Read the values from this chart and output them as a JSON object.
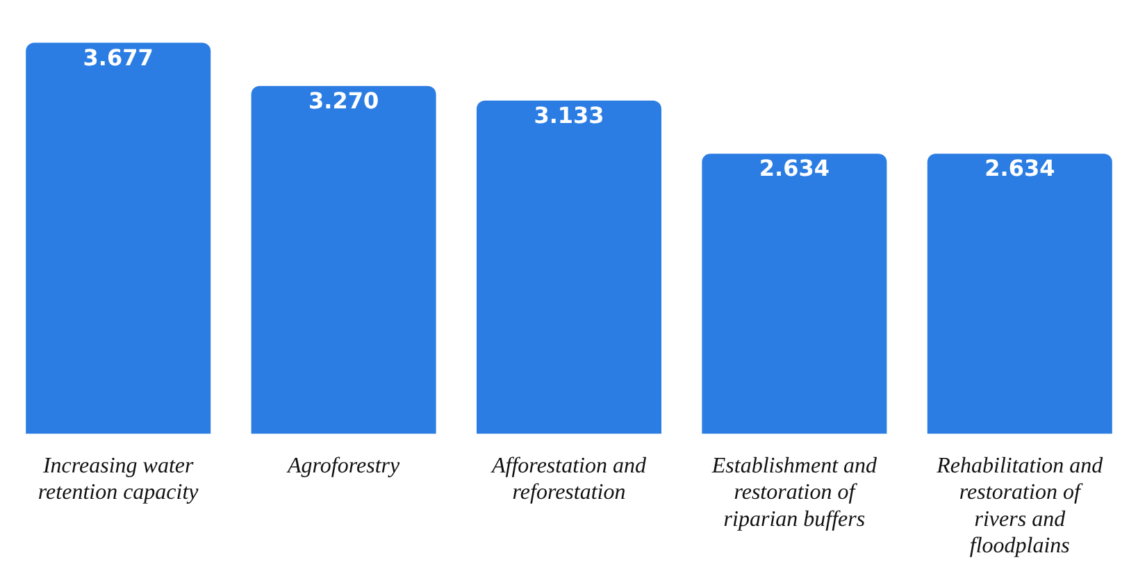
{
  "chart_data": {
    "type": "bar",
    "categories": [
      "Increasing water retention capacity",
      "Agroforestry",
      "Afforestation and reforestation",
      "Establishment and restoration of riparian buffers",
      "Rehabilitation and restoration of rivers and floodplains"
    ],
    "values": [
      3.677,
      3.27,
      3.133,
      2.634,
      2.634
    ],
    "value_labels": [
      "3.677",
      "3.270",
      "3.133",
      "2.634",
      "2.634"
    ],
    "color": "#2b7de3",
    "grid": false,
    "tick_labels": "x",
    "legend": false
  }
}
